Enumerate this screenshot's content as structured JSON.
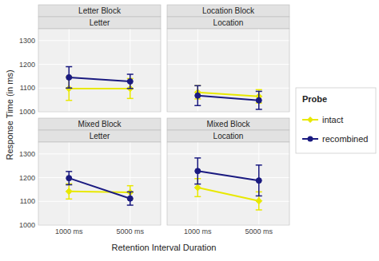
{
  "chart_data": [
    {
      "type": "line",
      "title": "Letter Block",
      "subtitle": "Letter",
      "xlabel": "Retention Interval Duration",
      "ylabel": "Response Time (in ms)",
      "legend_title": "Probe",
      "legend": "right",
      "categories": [
        "1000 ms",
        "5000 ms"
      ],
      "series": [
        {
          "name": "intact",
          "color": "#e8e800",
          "marker": "diamond",
          "values": [
            1098,
            1098
          ],
          "errors": [
            50,
            42
          ]
        },
        {
          "name": "recombined",
          "color": "#1a1a80",
          "marker": "circle",
          "values": [
            1145,
            1128
          ],
          "errors": [
            45,
            30
          ]
        }
      ],
      "ylim": [
        1000,
        1350
      ],
      "yticks": [
        1000,
        1100,
        1200,
        1300
      ],
      "grid": true,
      "tick_labels": "y"
    },
    {
      "type": "line",
      "title": "Location Block",
      "subtitle": "Location",
      "categories": [
        "1000 ms",
        "5000 ms"
      ],
      "series": [
        {
          "name": "intact",
          "color": "#e8e800",
          "marker": "diamond",
          "values": [
            1082,
            1065
          ],
          "errors": [
            28,
            28
          ]
        },
        {
          "name": "recombined",
          "color": "#1a1a80",
          "marker": "circle",
          "values": [
            1068,
            1048
          ],
          "errors": [
            42,
            38
          ]
        }
      ],
      "ylim": [
        1000,
        1350
      ],
      "yticks": [
        1000,
        1100,
        1200,
        1300
      ],
      "grid": true,
      "tick_labels": false
    },
    {
      "type": "line",
      "title": "Mixed Block",
      "subtitle": "Letter",
      "categories": [
        "1000 ms",
        "5000 ms"
      ],
      "series": [
        {
          "name": "intact",
          "color": "#e8e800",
          "marker": "diamond",
          "values": [
            1142,
            1138
          ],
          "errors": [
            32,
            28
          ]
        },
        {
          "name": "recombined",
          "color": "#1a1a80",
          "marker": "circle",
          "values": [
            1198,
            1112
          ],
          "errors": [
            28,
            28
          ]
        }
      ],
      "ylim": [
        1000,
        1350
      ],
      "yticks": [
        1000,
        1100,
        1200,
        1300
      ],
      "grid": true,
      "tick_labels": true
    },
    {
      "type": "line",
      "title": "Mixed Block",
      "subtitle": "Location",
      "categories": [
        "1000 ms",
        "5000 ms"
      ],
      "series": [
        {
          "name": "intact",
          "color": "#e8e800",
          "marker": "diamond",
          "values": [
            1158,
            1102
          ],
          "errors": [
            38,
            38
          ]
        },
        {
          "name": "recombined",
          "color": "#1a1a80",
          "marker": "circle",
          "values": [
            1228,
            1188
          ],
          "errors": [
            55,
            65
          ]
        }
      ],
      "ylim": [
        1000,
        1350
      ],
      "yticks": [
        1000,
        1100,
        1200,
        1300
      ],
      "grid": true,
      "tick_labels": "x"
    }
  ]
}
